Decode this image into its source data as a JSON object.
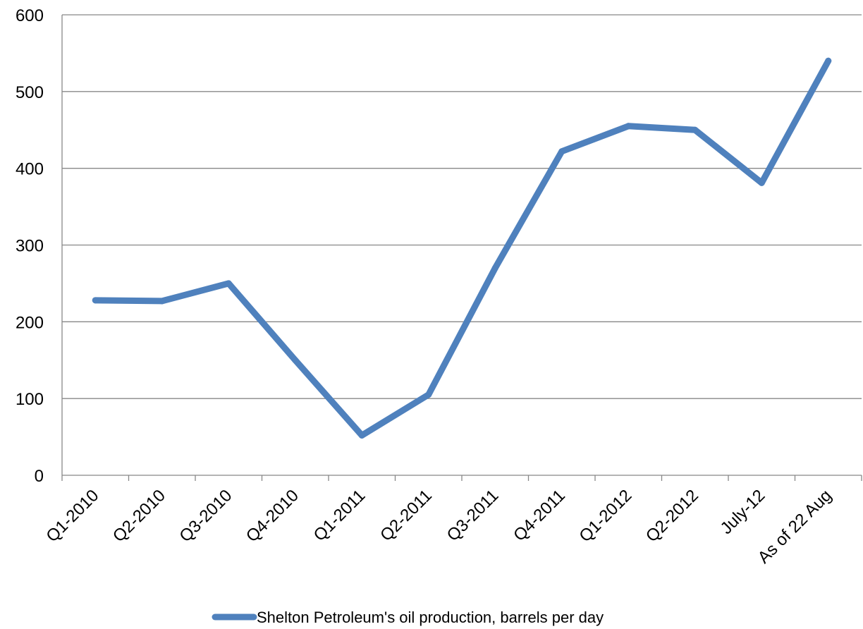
{
  "chart_data": {
    "type": "line",
    "categories": [
      "Q1-2010",
      "Q2-2010",
      "Q3-2010",
      "Q4-2010",
      "Q1-2011",
      "Q2-2011",
      "Q3-2011",
      "Q4-2011",
      "Q1-2012",
      "Q2-2012",
      "July-12",
      "As of 22 Aug"
    ],
    "series": [
      {
        "name": "Shelton Petroleum's oil production, barrels per day",
        "values": [
          228,
          227,
          250,
          150,
          52,
          105,
          270,
          422,
          455,
          450,
          381,
          540
        ],
        "color": "#4F81BD"
      }
    ],
    "title": "",
    "xlabel": "",
    "ylabel": "",
    "ylim": [
      0,
      600
    ],
    "yticks": [
      "0",
      "100",
      "200",
      "300",
      "400",
      "500",
      "600"
    ],
    "grid": true,
    "legend_position": "bottom"
  }
}
